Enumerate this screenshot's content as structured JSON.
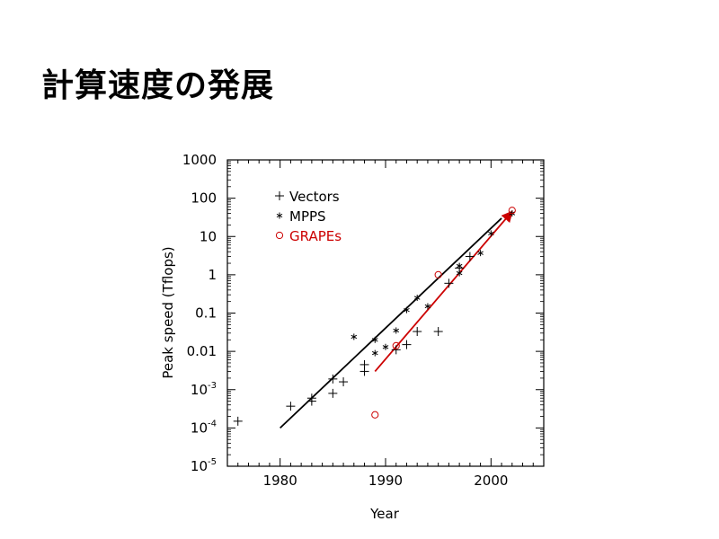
{
  "slide": {
    "title": "計算速度の発展"
  },
  "chart_data": {
    "type": "scatter",
    "title": "",
    "xlabel": "Year",
    "ylabel": "Peak speed  (Tflops)",
    "xlim": [
      1975,
      2005
    ],
    "ylim_log10": [
      -5,
      3
    ],
    "y_scale": "log",
    "grid": false,
    "legend_placement": "top-left",
    "x_ticks": [
      1980,
      1990,
      2000
    ],
    "y_ticks": [
      {
        "exp": 3,
        "label": "1000"
      },
      {
        "exp": 2,
        "label": "100"
      },
      {
        "exp": 1,
        "label": "10"
      },
      {
        "exp": 0,
        "label": "1"
      },
      {
        "exp": -1,
        "label": "0.1"
      },
      {
        "exp": -2,
        "label": "0.01"
      },
      {
        "exp": -3,
        "label": "10",
        "sup": "-3"
      },
      {
        "exp": -4,
        "label": "10",
        "sup": "-4"
      },
      {
        "exp": -5,
        "label": "10",
        "sup": "-5"
      }
    ],
    "series": [
      {
        "name": "Vectors",
        "marker": "plus",
        "color": "#000000",
        "points": [
          [
            1976,
            0.00015
          ],
          [
            1981,
            0.00037
          ],
          [
            1983,
            0.0005
          ],
          [
            1983,
            0.0006
          ],
          [
            1985,
            0.0008
          ],
          [
            1985,
            0.0019
          ],
          [
            1986,
            0.0016
          ],
          [
            1988,
            0.003
          ],
          [
            1988,
            0.0045
          ],
          [
            1991,
            0.011
          ],
          [
            1992,
            0.015
          ],
          [
            1993,
            0.033
          ],
          [
            1995,
            0.033
          ],
          [
            1996,
            0.6
          ],
          [
            1997,
            1.5
          ],
          [
            1998,
            3.0
          ]
        ]
      },
      {
        "name": "MPPS",
        "marker": "star",
        "color": "#000000",
        "points": [
          [
            1987,
            0.024
          ],
          [
            1989,
            0.009
          ],
          [
            1989,
            0.02
          ],
          [
            1990,
            0.013
          ],
          [
            1991,
            0.035
          ],
          [
            1992,
            0.12
          ],
          [
            1993,
            0.25
          ],
          [
            1994,
            0.15
          ],
          [
            1997,
            1.1
          ],
          [
            1997,
            1.7
          ],
          [
            1999,
            3.7
          ],
          [
            2000,
            12
          ],
          [
            2002,
            40
          ]
        ]
      },
      {
        "name": "GRAPEs",
        "marker": "circle",
        "color": "#cc0000",
        "points": [
          [
            1989,
            0.00022
          ],
          [
            1991,
            0.014
          ],
          [
            1995,
            1.0
          ],
          [
            2002,
            48
          ]
        ]
      }
    ],
    "trend_lines": [
      {
        "color": "#000000",
        "points": [
          [
            1980,
            0.0001
          ],
          [
            2001,
            30
          ]
        ]
      },
      {
        "color": "#cc0000",
        "points": [
          [
            1989,
            0.003
          ],
          [
            2002,
            45
          ]
        ],
        "arrow": true
      }
    ]
  }
}
